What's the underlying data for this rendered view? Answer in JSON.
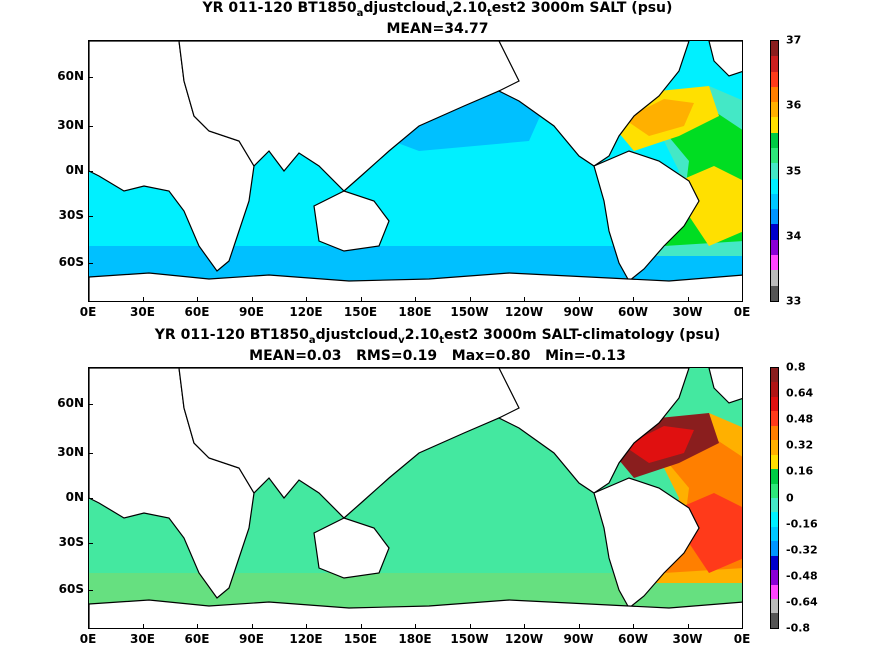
{
  "panels": [
    {
      "title_parts": [
        "YR 011-120 BT1850",
        "a",
        "djustcloud",
        "v",
        "2.10",
        "t",
        "est2 3000m SALT (psu)"
      ],
      "subtitle": "MEAN=34.77",
      "colorbar": {
        "labels": [
          "37",
          "36",
          "35",
          "34",
          "33"
        ],
        "colors": [
          "#8a1e1e",
          "#cc1f1f",
          "#ff3a1a",
          "#ff7f00",
          "#ffb000",
          "#ffe000",
          "#00cc44",
          "#2ee67a",
          "#44e8c6",
          "#00f0ff",
          "#00c8ff",
          "#0096ff",
          "#0000cc",
          "#8a00d6",
          "#ff44ff",
          "#bbbbbb",
          "#555555"
        ]
      },
      "fill_colors": {
        "ocean": "#00f0ff",
        "north_pacific": "#00c0ff",
        "southern_ocean": "#00c0ff",
        "atlantic_band": "#44e8c6",
        "atlantic_core": "#00dd22",
        "north_atlantic": "#ffe000",
        "north_atlantic_inner": "#ffb000",
        "gulf_stream": "#ffe000"
      }
    },
    {
      "title_parts": [
        "YR 011-120 BT1850",
        "a",
        "djustcloud",
        "v",
        "2.10",
        "t",
        "est2 3000m SALT-climatology (psu)"
      ],
      "subtitle": "MEAN=0.03   RMS=0.19   Max=0.80   Min=-0.13",
      "colorbar": {
        "labels": [
          "0.8",
          "0.64",
          "0.48",
          "0.32",
          "0.16",
          "0",
          "-0.16",
          "-0.32",
          "-0.48",
          "-0.64",
          "-0.8"
        ],
        "colors": [
          "#8a1e1e",
          "#b01515",
          "#e01010",
          "#ff3a1a",
          "#ff7f00",
          "#ffb000",
          "#ffe000",
          "#00cc44",
          "#2ee67a",
          "#44e8c6",
          "#00f0ff",
          "#00c8ff",
          "#0096ff",
          "#0000cc",
          "#8a00d6",
          "#ff44ff",
          "#bbbbbb",
          "#555555"
        ]
      },
      "fill_colors": {
        "ocean": "#44e8a0",
        "north_pacific": "#44e8a0",
        "southern_ocean": "#66e080",
        "atlantic_band": "#ffb000",
        "atlantic_core": "#ff7f00",
        "north_atlantic": "#8a1e1e",
        "north_atlantic_inner": "#e01010",
        "gulf_stream": "#ff3a1a"
      }
    }
  ],
  "axes": {
    "lat_labels": [
      "60N",
      "30N",
      "0N",
      "30S",
      "60S"
    ],
    "lon_labels": [
      "0E",
      "30E",
      "60E",
      "90E",
      "120E",
      "150E",
      "180E",
      "150W",
      "120W",
      "90W",
      "60W",
      "30W",
      "0E"
    ]
  }
}
